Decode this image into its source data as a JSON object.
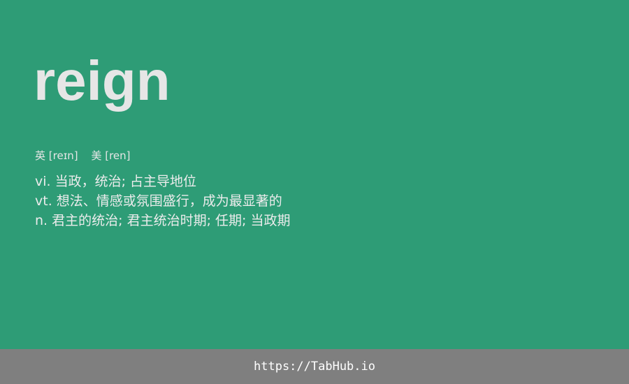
{
  "word": "reign",
  "phonetics": [
    {
      "region": "英",
      "ipa": "[reɪn]"
    },
    {
      "region": "美",
      "ipa": "[ren]"
    }
  ],
  "definitions": [
    {
      "pos": "vi.",
      "meaning": "当政，统治; 占主导地位"
    },
    {
      "pos": "vt.",
      "meaning": "想法、情感或氛围盛行，成为最显著的"
    },
    {
      "pos": "n.",
      "meaning": "君主的统治; 君主统治时期; 任期; 当政期"
    }
  ],
  "footer": {
    "link_text": "https://TabHub.io"
  },
  "colors": {
    "background": "#2e9c76",
    "footer_background": "#7f7f7f",
    "text": "#e6e6e6"
  }
}
